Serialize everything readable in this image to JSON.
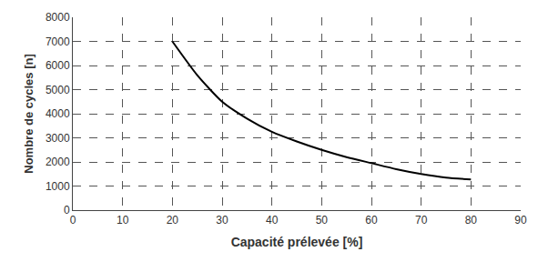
{
  "chart_data": {
    "type": "line",
    "x_label": "Capacité prélevée [%]",
    "y_label": "Nombre de cycles [n]",
    "x": [
      20,
      25,
      30,
      35,
      40,
      45,
      50,
      55,
      60,
      65,
      70,
      75,
      80
    ],
    "series": [
      {
        "color": "#000000",
        "line_style": "solid",
        "values": [
          7000,
          5600,
          4500,
          3800,
          3250,
          2850,
          2500,
          2200,
          1950,
          1700,
          1500,
          1350,
          1270
        ]
      }
    ],
    "xlim": [
      0,
      90
    ],
    "xticks": [
      0,
      10,
      20,
      30,
      40,
      50,
      60,
      70,
      80,
      90
    ],
    "ylim": [
      0,
      8000
    ],
    "yticks": [
      0,
      1000,
      2000,
      3000,
      4000,
      5000,
      6000,
      7000,
      8000
    ],
    "grid": true
  }
}
